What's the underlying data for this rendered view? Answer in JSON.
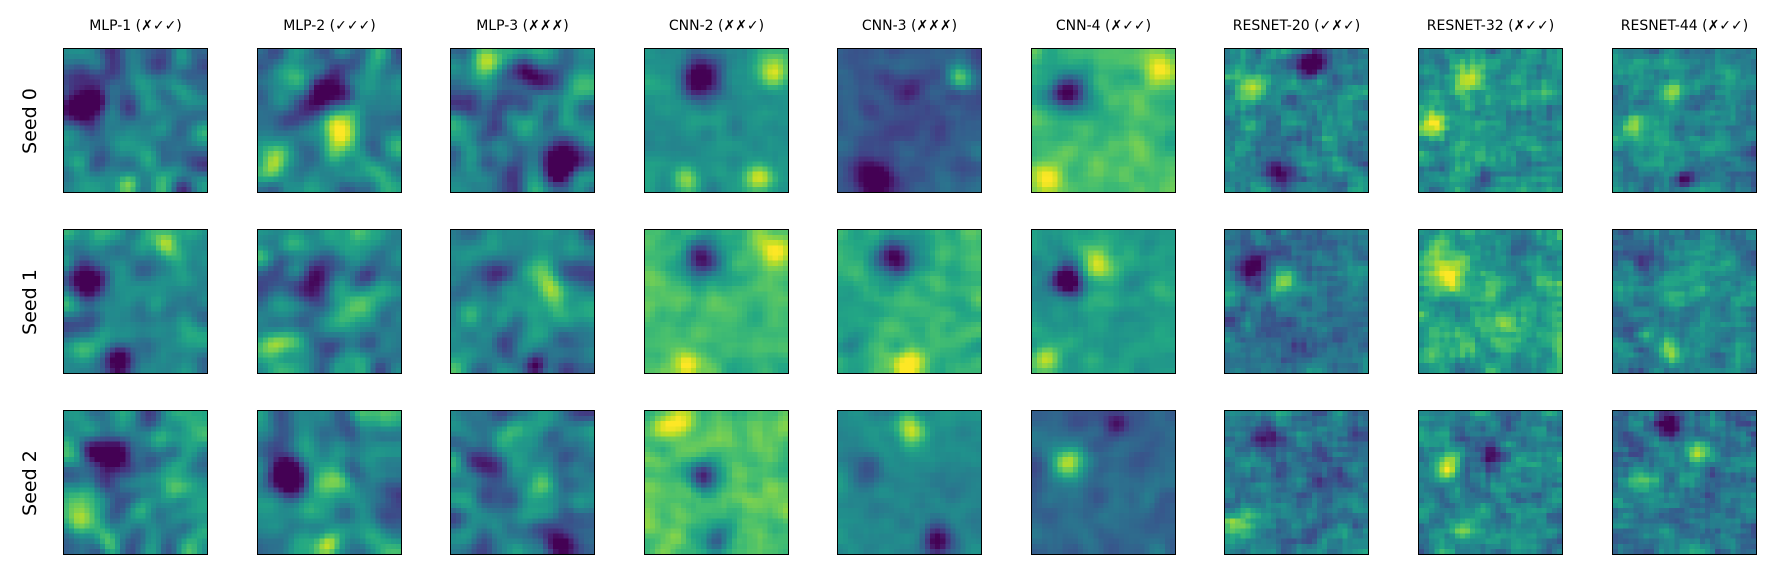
{
  "chart_data": {
    "type": "heatmap",
    "colormap": "viridis",
    "columns": [
      "MLP-1 (✗✓✓)",
      "MLP-2 (✓✓✓)",
      "MLP-3 (✗✗✗)",
      "CNN-2 (✗✗✓)",
      "CNN-3 (✗✗✗)",
      "CNN-4 (✗✓✓)",
      "RESNET-20 (✓✗✓)",
      "RESNET-32 (✗✓✓)",
      "RESNET-44 (✗✓✓)"
    ],
    "rows": [
      "Seed 0",
      "Seed 1",
      "Seed 2"
    ],
    "grid": false,
    "ticks": "none",
    "cells": [
      [
        {
          "base": 0.4,
          "texture": "smooth",
          "blobs": [
            [
              0.15,
              0.35,
              0.1,
              -0.55
            ],
            [
              0.55,
              0.75,
              0.1,
              0.25
            ],
            [
              0.45,
              0.95,
              0.06,
              0.35
            ]
          ]
        },
        {
          "base": 0.45,
          "texture": "smooth",
          "blobs": [
            [
              0.5,
              0.3,
              0.1,
              -0.6
            ],
            [
              0.6,
              0.55,
              0.12,
              0.35
            ],
            [
              0.1,
              0.75,
              0.1,
              0.3
            ]
          ]
        },
        {
          "base": 0.42,
          "texture": "smooth",
          "blobs": [
            [
              0.25,
              0.1,
              0.08,
              0.45
            ],
            [
              0.75,
              0.8,
              0.1,
              -0.5
            ],
            [
              0.55,
              0.15,
              0.08,
              -0.35
            ]
          ]
        },
        {
          "base": 0.52,
          "texture": "blocky",
          "blobs": [
            [
              0.4,
              0.2,
              0.1,
              -0.6
            ],
            [
              0.9,
              0.15,
              0.08,
              0.45
            ],
            [
              0.8,
              0.9,
              0.07,
              0.4
            ],
            [
              0.3,
              0.9,
              0.06,
              0.35
            ]
          ]
        },
        {
          "base": 0.3,
          "texture": "blocky",
          "blobs": [
            [
              0.25,
              0.9,
              0.1,
              -0.45
            ],
            [
              0.85,
              0.2,
              0.06,
              0.45
            ],
            [
              0.5,
              0.3,
              0.1,
              -0.2
            ]
          ]
        },
        {
          "base": 0.68,
          "texture": "blocky",
          "blobs": [
            [
              0.25,
              0.3,
              0.1,
              -0.7
            ],
            [
              0.9,
              0.15,
              0.08,
              0.3
            ],
            [
              0.1,
              0.9,
              0.08,
              0.35
            ]
          ]
        },
        {
          "base": 0.45,
          "texture": "fine",
          "blobs": [
            [
              0.6,
              0.1,
              0.07,
              -0.5
            ],
            [
              0.2,
              0.25,
              0.08,
              0.3
            ],
            [
              0.4,
              0.85,
              0.08,
              -0.3
            ]
          ]
        },
        {
          "base": 0.5,
          "texture": "fine",
          "blobs": [
            [
              0.35,
              0.2,
              0.08,
              0.45
            ],
            [
              0.1,
              0.5,
              0.07,
              0.35
            ],
            [
              0.45,
              0.92,
              0.05,
              -0.4
            ]
          ]
        },
        {
          "base": 0.42,
          "texture": "fine",
          "blobs": [
            [
              0.4,
              0.3,
              0.06,
              0.5
            ],
            [
              0.15,
              0.55,
              0.06,
              0.35
            ],
            [
              0.5,
              0.92,
              0.05,
              -0.45
            ]
          ]
        }
      ],
      [
        {
          "base": 0.45,
          "texture": "smooth",
          "blobs": [
            [
              0.15,
              0.35,
              0.1,
              -0.55
            ],
            [
              0.7,
              0.1,
              0.06,
              0.4
            ],
            [
              0.4,
              0.9,
              0.08,
              -0.3
            ]
          ]
        },
        {
          "base": 0.45,
          "texture": "smooth",
          "blobs": [
            [
              0.4,
              0.4,
              0.1,
              -0.45
            ],
            [
              0.55,
              0.55,
              0.1,
              0.3
            ],
            [
              0.15,
              0.8,
              0.08,
              0.35
            ]
          ]
        },
        {
          "base": 0.45,
          "texture": "smooth",
          "blobs": [
            [
              0.3,
              0.3,
              0.1,
              -0.4
            ],
            [
              0.7,
              0.45,
              0.1,
              0.35
            ],
            [
              0.6,
              0.95,
              0.06,
              -0.5
            ]
          ]
        },
        {
          "base": 0.68,
          "texture": "blocky",
          "blobs": [
            [
              0.4,
              0.2,
              0.1,
              -0.6
            ],
            [
              0.9,
              0.15,
              0.08,
              0.3
            ],
            [
              0.3,
              0.95,
              0.06,
              0.3
            ]
          ]
        },
        {
          "base": 0.65,
          "texture": "blocky",
          "blobs": [
            [
              0.4,
              0.2,
              0.1,
              -0.65
            ],
            [
              0.5,
              0.95,
              0.08,
              0.35
            ],
            [
              0.1,
              0.8,
              0.08,
              -0.2
            ]
          ]
        },
        {
          "base": 0.55,
          "texture": "blocky",
          "blobs": [
            [
              0.25,
              0.35,
              0.08,
              -0.75
            ],
            [
              0.45,
              0.25,
              0.08,
              0.45
            ],
            [
              0.1,
              0.9,
              0.08,
              0.35
            ]
          ]
        },
        {
          "base": 0.4,
          "texture": "fine",
          "blobs": [
            [
              0.2,
              0.25,
              0.08,
              -0.45
            ],
            [
              0.4,
              0.35,
              0.07,
              0.4
            ],
            [
              0.5,
              0.8,
              0.1,
              -0.2
            ]
          ]
        },
        {
          "base": 0.55,
          "texture": "fine",
          "blobs": [
            [
              0.2,
              0.3,
              0.1,
              0.3
            ],
            [
              0.7,
              0.15,
              0.08,
              -0.3
            ],
            [
              0.6,
              0.75,
              0.08,
              0.25
            ]
          ]
        },
        {
          "base": 0.45,
          "texture": "fine",
          "blobs": [
            [
              0.5,
              0.4,
              0.1,
              0.25
            ],
            [
              0.4,
              0.85,
              0.06,
              0.35
            ],
            [
              0.2,
              0.2,
              0.07,
              -0.25
            ]
          ]
        }
      ],
      [
        {
          "base": 0.45,
          "texture": "smooth",
          "blobs": [
            [
              0.3,
              0.3,
              0.1,
              -0.5
            ],
            [
              0.1,
              0.7,
              0.1,
              0.35
            ],
            [
              0.3,
              0.9,
              0.07,
              0.3
            ]
          ]
        },
        {
          "base": 0.45,
          "texture": "smooth",
          "blobs": [
            [
              0.2,
              0.45,
              0.1,
              -0.55
            ],
            [
              0.5,
              0.5,
              0.1,
              0.35
            ],
            [
              0.5,
              0.92,
              0.06,
              0.4
            ]
          ]
        },
        {
          "base": 0.45,
          "texture": "smooth",
          "blobs": [
            [
              0.25,
              0.35,
              0.1,
              -0.4
            ],
            [
              0.6,
              0.6,
              0.1,
              0.3
            ],
            [
              0.75,
              0.9,
              0.08,
              -0.55
            ]
          ]
        },
        {
          "base": 0.72,
          "texture": "blocky",
          "blobs": [
            [
              0.2,
              0.1,
              0.08,
              0.3
            ],
            [
              0.4,
              0.45,
              0.08,
              -0.55
            ],
            [
              0.5,
              0.9,
              0.07,
              -0.5
            ]
          ]
        },
        {
          "base": 0.45,
          "texture": "blocky",
          "blobs": [
            [
              0.5,
              0.15,
              0.08,
              0.45
            ],
            [
              0.7,
              0.9,
              0.08,
              -0.45
            ],
            [
              0.2,
              0.4,
              0.08,
              -0.2
            ]
          ]
        },
        {
          "base": 0.33,
          "texture": "blocky",
          "blobs": [
            [
              0.25,
              0.35,
              0.08,
              0.55
            ],
            [
              0.6,
              0.1,
              0.06,
              -0.35
            ]
          ]
        },
        {
          "base": 0.4,
          "texture": "fine",
          "blobs": [
            [
              0.1,
              0.8,
              0.08,
              0.45
            ],
            [
              0.3,
              0.2,
              0.07,
              -0.4
            ],
            [
              0.7,
              0.5,
              0.08,
              -0.25
            ]
          ]
        },
        {
          "base": 0.45,
          "texture": "fine",
          "blobs": [
            [
              0.5,
              0.3,
              0.07,
              -0.45
            ],
            [
              0.2,
              0.4,
              0.07,
              0.4
            ],
            [
              0.3,
              0.85,
              0.07,
              0.3
            ]
          ]
        },
        {
          "base": 0.4,
          "texture": "fine",
          "blobs": [
            [
              0.4,
              0.1,
              0.07,
              -0.45
            ],
            [
              0.6,
              0.3,
              0.07,
              0.4
            ],
            [
              0.2,
              0.5,
              0.07,
              0.3
            ]
          ]
        }
      ]
    ]
  }
}
